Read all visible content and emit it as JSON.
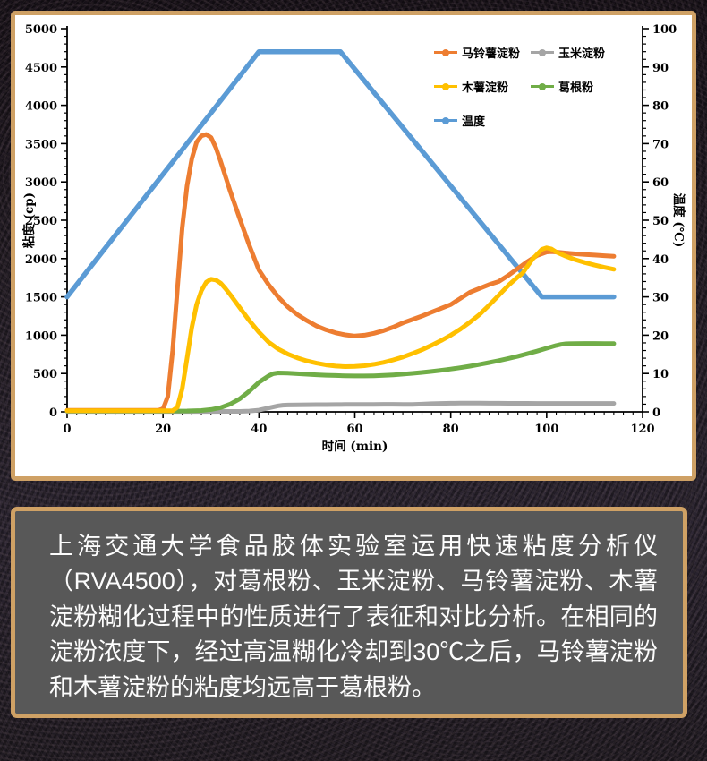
{
  "chart_data": {
    "type": "line",
    "title": "",
    "xlabel": "时间 (min)",
    "ylabel_left": "粘度 (cp)",
    "ylabel_right": "温度 (℃)",
    "xlim": [
      0,
      120
    ],
    "x_ticks": [
      0,
      20,
      40,
      60,
      80,
      100,
      120
    ],
    "x_minor": 2,
    "ylim_left": [
      0,
      5000
    ],
    "y_left_ticks": [
      0,
      500,
      1000,
      1500,
      2000,
      2500,
      3000,
      3500,
      4000,
      4500,
      5000
    ],
    "left_minor": 100,
    "ylim_right": [
      0,
      100
    ],
    "y_right_ticks": [
      0,
      10,
      20,
      30,
      40,
      50,
      60,
      70,
      80,
      90,
      100
    ],
    "right_minor": 2,
    "grid": "off",
    "legend_position": "top-right-inside",
    "draw_order": [
      4,
      0,
      1,
      3,
      2
    ],
    "series": [
      {
        "name": "马铃薯淀粉",
        "color": "#ED7D31",
        "axis": "left",
        "width": 5,
        "points": [
          [
            0,
            20
          ],
          [
            4,
            20
          ],
          [
            8,
            20
          ],
          [
            12,
            20
          ],
          [
            16,
            20
          ],
          [
            19,
            20
          ],
          [
            20,
            40
          ],
          [
            21,
            200
          ],
          [
            22,
            800
          ],
          [
            23,
            1600
          ],
          [
            24,
            2400
          ],
          [
            25,
            2950
          ],
          [
            26,
            3300
          ],
          [
            27,
            3520
          ],
          [
            28,
            3600
          ],
          [
            29,
            3620
          ],
          [
            30,
            3580
          ],
          [
            31,
            3450
          ],
          [
            32,
            3270
          ],
          [
            34,
            2880
          ],
          [
            36,
            2520
          ],
          [
            38,
            2170
          ],
          [
            40,
            1850
          ],
          [
            42,
            1660
          ],
          [
            44,
            1500
          ],
          [
            46,
            1370
          ],
          [
            48,
            1270
          ],
          [
            50,
            1190
          ],
          [
            52,
            1120
          ],
          [
            54,
            1070
          ],
          [
            56,
            1030
          ],
          [
            58,
            1005
          ],
          [
            60,
            990
          ],
          [
            62,
            1000
          ],
          [
            64,
            1025
          ],
          [
            66,
            1060
          ],
          [
            68,
            1105
          ],
          [
            70,
            1160
          ],
          [
            72,
            1205
          ],
          [
            74,
            1250
          ],
          [
            76,
            1300
          ],
          [
            78,
            1350
          ],
          [
            80,
            1400
          ],
          [
            82,
            1480
          ],
          [
            84,
            1560
          ],
          [
            86,
            1610
          ],
          [
            88,
            1660
          ],
          [
            90,
            1700
          ],
          [
            92,
            1780
          ],
          [
            94,
            1870
          ],
          [
            96,
            1960
          ],
          [
            98,
            2040
          ],
          [
            100,
            2085
          ],
          [
            101,
            2090
          ],
          [
            102,
            2085
          ],
          [
            104,
            2072
          ],
          [
            106,
            2062
          ],
          [
            108,
            2052
          ],
          [
            110,
            2045
          ],
          [
            112,
            2037
          ],
          [
            114,
            2030
          ]
        ]
      },
      {
        "name": "玉米淀粉",
        "color": "#A5A5A5",
        "axis": "left",
        "width": 5,
        "points": [
          [
            0,
            5
          ],
          [
            10,
            5
          ],
          [
            20,
            5
          ],
          [
            30,
            5
          ],
          [
            36,
            6
          ],
          [
            38,
            10
          ],
          [
            40,
            22
          ],
          [
            42,
            50
          ],
          [
            44,
            78
          ],
          [
            45,
            86
          ],
          [
            46,
            89
          ],
          [
            48,
            91
          ],
          [
            50,
            92
          ],
          [
            52,
            93
          ],
          [
            54,
            94
          ],
          [
            56,
            95
          ],
          [
            58,
            96
          ],
          [
            60,
            96
          ],
          [
            62,
            97
          ],
          [
            64,
            97
          ],
          [
            66,
            98
          ],
          [
            68,
            98
          ],
          [
            70,
            97
          ],
          [
            72,
            97
          ],
          [
            74,
            100
          ],
          [
            76,
            106
          ],
          [
            78,
            110
          ],
          [
            80,
            112
          ],
          [
            82,
            113
          ],
          [
            84,
            113
          ],
          [
            86,
            113
          ],
          [
            88,
            112
          ],
          [
            90,
            112
          ],
          [
            92,
            111
          ],
          [
            94,
            111
          ],
          [
            96,
            111
          ],
          [
            98,
            110
          ],
          [
            100,
            110
          ],
          [
            102,
            110
          ],
          [
            104,
            110
          ],
          [
            106,
            110
          ],
          [
            108,
            110
          ],
          [
            110,
            110
          ],
          [
            112,
            110
          ],
          [
            114,
            110
          ]
        ]
      },
      {
        "name": "木薯淀粉",
        "color": "#FFC000",
        "axis": "left",
        "width": 5,
        "points": [
          [
            0,
            15
          ],
          [
            5,
            15
          ],
          [
            10,
            15
          ],
          [
            15,
            15
          ],
          [
            20,
            15
          ],
          [
            22,
            15
          ],
          [
            23,
            60
          ],
          [
            24,
            300
          ],
          [
            25,
            700
          ],
          [
            26,
            1100
          ],
          [
            27,
            1400
          ],
          [
            28,
            1580
          ],
          [
            29,
            1690
          ],
          [
            30,
            1730
          ],
          [
            31,
            1720
          ],
          [
            32,
            1680
          ],
          [
            33,
            1610
          ],
          [
            34,
            1530
          ],
          [
            36,
            1360
          ],
          [
            38,
            1190
          ],
          [
            40,
            1040
          ],
          [
            42,
            910
          ],
          [
            44,
            820
          ],
          [
            46,
            755
          ],
          [
            48,
            705
          ],
          [
            50,
            665
          ],
          [
            52,
            635
          ],
          [
            54,
            612
          ],
          [
            56,
            597
          ],
          [
            58,
            590
          ],
          [
            60,
            592
          ],
          [
            62,
            602
          ],
          [
            64,
            620
          ],
          [
            66,
            645
          ],
          [
            68,
            678
          ],
          [
            70,
            715
          ],
          [
            72,
            760
          ],
          [
            74,
            810
          ],
          [
            76,
            868
          ],
          [
            78,
            930
          ],
          [
            80,
            1000
          ],
          [
            82,
            1080
          ],
          [
            84,
            1170
          ],
          [
            86,
            1270
          ],
          [
            88,
            1390
          ],
          [
            90,
            1520
          ],
          [
            92,
            1650
          ],
          [
            94,
            1760
          ],
          [
            95,
            1810
          ],
          [
            97,
            1990
          ],
          [
            99,
            2120
          ],
          [
            100,
            2140
          ],
          [
            101,
            2125
          ],
          [
            102,
            2085
          ],
          [
            104,
            2030
          ],
          [
            106,
            1985
          ],
          [
            108,
            1948
          ],
          [
            110,
            1915
          ],
          [
            112,
            1886
          ],
          [
            114,
            1860
          ]
        ]
      },
      {
        "name": "葛根粉",
        "color": "#70AD47",
        "axis": "left",
        "width": 5,
        "points": [
          [
            0,
            10
          ],
          [
            5,
            10
          ],
          [
            10,
            10
          ],
          [
            15,
            10
          ],
          [
            20,
            10
          ],
          [
            25,
            12
          ],
          [
            28,
            18
          ],
          [
            30,
            30
          ],
          [
            32,
            55
          ],
          [
            34,
            100
          ],
          [
            36,
            170
          ],
          [
            38,
            270
          ],
          [
            40,
            385
          ],
          [
            42,
            470
          ],
          [
            43,
            498
          ],
          [
            44,
            508
          ],
          [
            46,
            505
          ],
          [
            48,
            498
          ],
          [
            50,
            491
          ],
          [
            52,
            484
          ],
          [
            54,
            478
          ],
          [
            56,
            474
          ],
          [
            58,
            471
          ],
          [
            60,
            469
          ],
          [
            62,
            469
          ],
          [
            64,
            471
          ],
          [
            66,
            476
          ],
          [
            68,
            483
          ],
          [
            70,
            492
          ],
          [
            72,
            502
          ],
          [
            74,
            514
          ],
          [
            76,
            527
          ],
          [
            78,
            542
          ],
          [
            80,
            558
          ],
          [
            82,
            576
          ],
          [
            84,
            596
          ],
          [
            86,
            618
          ],
          [
            88,
            642
          ],
          [
            90,
            668
          ],
          [
            92,
            696
          ],
          [
            94,
            726
          ],
          [
            96,
            758
          ],
          [
            98,
            792
          ],
          [
            100,
            830
          ],
          [
            102,
            866
          ],
          [
            103,
            880
          ],
          [
            104,
            888
          ],
          [
            106,
            891
          ],
          [
            108,
            892
          ],
          [
            110,
            892
          ],
          [
            112,
            891
          ],
          [
            114,
            890
          ]
        ]
      },
      {
        "name": "温度",
        "color": "#5B9BD5",
        "axis": "right",
        "width": 5.5,
        "points": [
          [
            0,
            30
          ],
          [
            40,
            94
          ],
          [
            57,
            94
          ],
          [
            99,
            30
          ],
          [
            114,
            30
          ]
        ]
      }
    ]
  },
  "caption": {
    "text": "上海交通大学食品胶体实验室运用快速粘度分析仪（RVA4500），对葛根粉、玉米淀粉、马铃薯淀粉、木薯淀粉糊化过程中的性质进行了表征和对比分析。在相同的淀粉浓度下，经过高温糊化冷却到30℃之后，马铃薯淀粉和木薯淀粉的粘度均远高于葛根粉。"
  },
  "theme": {
    "card_border": "#cfa165",
    "panel_bg": "#585858",
    "axis_color": "#000000"
  }
}
